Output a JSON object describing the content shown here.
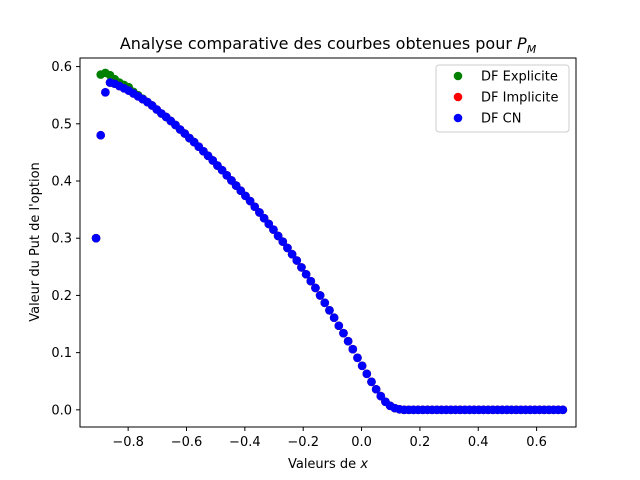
{
  "chart_data": {
    "type": "scatter",
    "title": "Analyse comparative des courbes obtenues pour P_M",
    "title_parts": {
      "text": "Analyse comparative des courbes obtenues pour ",
      "symbol": "P",
      "subscript": "M"
    },
    "xlabel": "Valeurs de x",
    "xlabel_parts": {
      "text": "Valeurs de ",
      "symbol": "x"
    },
    "ylabel": "Valeur du Put de l'option",
    "xlim": [
      -0.965,
      0.735
    ],
    "ylim": [
      -0.03,
      0.615
    ],
    "xticks": [
      -0.8,
      -0.6,
      -0.4,
      -0.2,
      0.0,
      0.2,
      0.4,
      0.6
    ],
    "xtick_labels": [
      "−0.8",
      "−0.6",
      "−0.4",
      "−0.2",
      "0.0",
      "0.2",
      "0.4",
      "0.6"
    ],
    "yticks": [
      0.0,
      0.1,
      0.2,
      0.3,
      0.4,
      0.5,
      0.6
    ],
    "ytick_labels": [
      "0.0",
      "0.1",
      "0.2",
      "0.3",
      "0.4",
      "0.5",
      "0.6"
    ],
    "grid": false,
    "legend_position": "top-right",
    "x_grid": {
      "start": -0.91,
      "end": 0.69,
      "points": 101
    },
    "series": [
      {
        "name": "DF Explicite",
        "color": "#008000",
        "values": [
          0.3,
          0.586,
          0.589,
          0.585,
          0.578,
          0.572,
          0.568,
          0.564,
          0.556,
          0.55,
          0.544,
          0.538,
          0.532,
          0.525,
          0.518,
          0.512,
          0.505,
          0.498,
          0.49,
          0.483,
          0.475,
          0.468,
          0.46,
          0.452,
          0.444,
          0.436,
          0.427,
          0.419,
          0.41,
          0.401,
          0.392,
          0.383,
          0.374,
          0.365,
          0.355,
          0.345,
          0.335,
          0.325,
          0.315,
          0.304,
          0.294,
          0.283,
          0.272,
          0.261,
          0.249,
          0.237,
          0.225,
          0.213,
          0.2,
          0.187,
          0.174,
          0.161,
          0.147,
          0.134,
          0.12,
          0.106,
          0.091,
          0.077,
          0.063,
          0.049,
          0.036,
          0.024,
          0.014,
          0.007,
          0.003,
          0.001,
          0.0,
          0.0,
          0.0,
          0.0,
          0.0,
          0.0,
          0.0,
          0.0,
          0.0,
          0.0,
          0.0,
          0.0,
          0.0,
          0.0,
          0.0,
          0.0,
          0.0,
          0.0,
          0.0,
          0.0,
          0.0,
          0.0,
          0.0,
          0.0,
          0.0,
          0.0,
          0.0,
          0.0,
          0.0,
          0.0,
          0.0,
          0.0,
          0.0,
          0.0,
          0.0
        ]
      },
      {
        "name": "DF Implicite",
        "color": "#ff0000",
        "values": [
          0.3,
          0.48,
          0.555,
          0.572,
          0.57,
          0.566,
          0.562,
          0.558,
          0.553,
          0.548,
          0.543,
          0.538,
          0.532,
          0.525,
          0.518,
          0.512,
          0.505,
          0.498,
          0.49,
          0.483,
          0.475,
          0.468,
          0.46,
          0.452,
          0.444,
          0.436,
          0.427,
          0.419,
          0.41,
          0.401,
          0.392,
          0.383,
          0.374,
          0.365,
          0.355,
          0.345,
          0.335,
          0.325,
          0.315,
          0.304,
          0.294,
          0.283,
          0.272,
          0.261,
          0.249,
          0.237,
          0.225,
          0.213,
          0.2,
          0.187,
          0.174,
          0.161,
          0.147,
          0.134,
          0.12,
          0.106,
          0.091,
          0.077,
          0.063,
          0.049,
          0.036,
          0.024,
          0.014,
          0.007,
          0.003,
          0.001,
          0.0,
          0.0,
          0.0,
          0.0,
          0.0,
          0.0,
          0.0,
          0.0,
          0.0,
          0.0,
          0.0,
          0.0,
          0.0,
          0.0,
          0.0,
          0.0,
          0.0,
          0.0,
          0.0,
          0.0,
          0.0,
          0.0,
          0.0,
          0.0,
          0.0,
          0.0,
          0.0,
          0.0,
          0.0,
          0.0,
          0.0,
          0.0,
          0.0,
          0.0,
          0.0
        ]
      },
      {
        "name": "DF CN",
        "color": "#0000ff",
        "values": [
          0.3,
          0.48,
          0.555,
          0.572,
          0.57,
          0.566,
          0.562,
          0.558,
          0.553,
          0.548,
          0.543,
          0.538,
          0.532,
          0.525,
          0.518,
          0.512,
          0.505,
          0.498,
          0.49,
          0.483,
          0.475,
          0.468,
          0.46,
          0.452,
          0.444,
          0.436,
          0.427,
          0.419,
          0.41,
          0.401,
          0.392,
          0.383,
          0.374,
          0.365,
          0.355,
          0.345,
          0.335,
          0.325,
          0.315,
          0.304,
          0.294,
          0.283,
          0.272,
          0.261,
          0.249,
          0.237,
          0.225,
          0.213,
          0.2,
          0.187,
          0.174,
          0.161,
          0.147,
          0.134,
          0.12,
          0.106,
          0.091,
          0.077,
          0.063,
          0.049,
          0.036,
          0.024,
          0.014,
          0.007,
          0.003,
          0.001,
          0.0,
          0.0,
          0.0,
          0.0,
          0.0,
          0.0,
          0.0,
          0.0,
          0.0,
          0.0,
          0.0,
          0.0,
          0.0,
          0.0,
          0.0,
          0.0,
          0.0,
          0.0,
          0.0,
          0.0,
          0.0,
          0.0,
          0.0,
          0.0,
          0.0,
          0.0,
          0.0,
          0.0,
          0.0,
          0.0,
          0.0,
          0.0,
          0.0,
          0.0,
          0.0
        ]
      }
    ]
  }
}
